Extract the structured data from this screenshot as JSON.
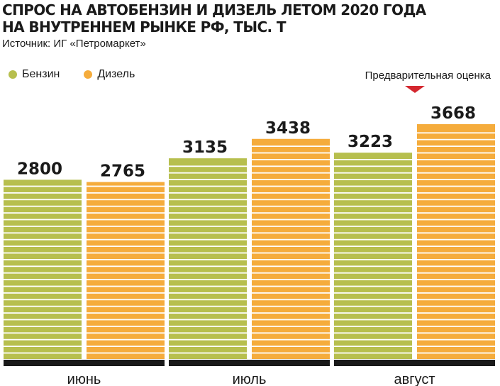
{
  "header": {
    "title_line1": "СПРОС НА АВТОБЕНЗИН И ДИЗЕЛЬ ЛЕТОМ 2020 ГОДА",
    "title_line2": "НА ВНУТРЕННЕМ РЫНКЕ РФ, ТЫС. Т",
    "source": "Источник: ИГ «Петромаркет»"
  },
  "legend": {
    "items": [
      {
        "label": "Бензин",
        "color": "#b7bf4e"
      },
      {
        "label": "Дизель",
        "color": "#f5ac3c"
      }
    ]
  },
  "annotation": {
    "label": "Предварительная оценка",
    "marker_color": "#d4272f",
    "applies_to": "август"
  },
  "colors": {
    "benzin": "#b7bf4e",
    "diesel": "#f5ac3c",
    "axis": "#1a1a1a",
    "stripe": "#ffffff"
  },
  "chart_data": {
    "type": "bar",
    "title": "СПРОС НА АВТОБЕНЗИН И ДИЗЕЛЬ ЛЕТОМ 2020 ГОДА НА ВНУТРЕННЕМ РЫНКЕ РФ, ТЫС. Т",
    "categories": [
      "июнь",
      "июль",
      "август"
    ],
    "series": [
      {
        "name": "Бензин",
        "values": [
          2800,
          3135,
          3223
        ]
      },
      {
        "name": "Дизель",
        "values": [
          2765,
          3438,
          3668
        ]
      }
    ],
    "ylim": [
      0,
      3668
    ],
    "grid": false,
    "legend_position": "top-left"
  }
}
